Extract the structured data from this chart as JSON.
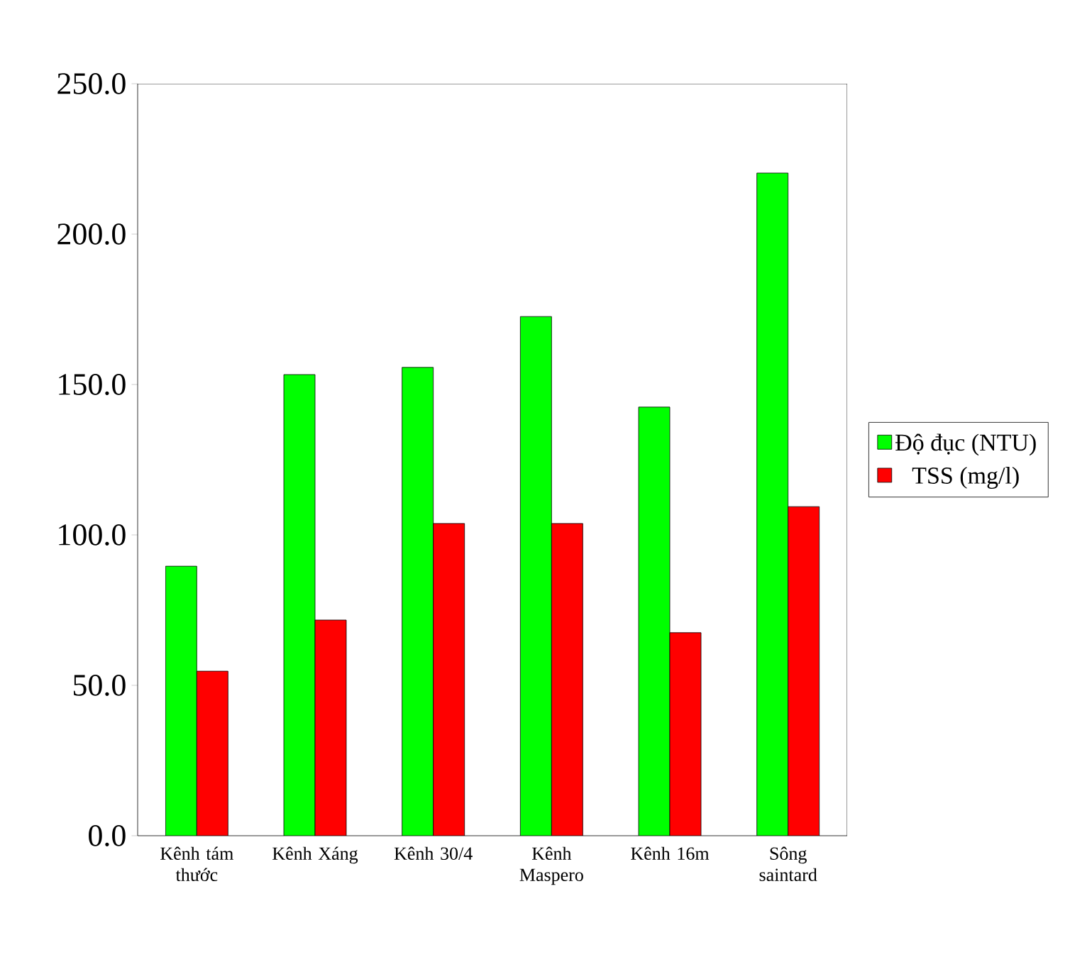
{
  "chart_data": {
    "type": "bar",
    "categories": [
      "Kênh tám thước",
      "Kênh Xáng",
      "Kênh 30/4",
      "Kênh Maspero",
      "Kênh 16m",
      "Sông saintard"
    ],
    "series": [
      {
        "name": "Độ đục (NTU)",
        "color": "#00ff00",
        "values": [
          89.6,
          153.3,
          155.7,
          172.6,
          142.5,
          220.3
        ]
      },
      {
        "name": "TSS (mg/l)",
        "color": "#ff0000",
        "values": [
          54.7,
          71.7,
          103.8,
          103.8,
          67.5,
          109.4
        ]
      }
    ],
    "ylim": [
      0,
      250
    ],
    "yticks": [
      {
        "value": 0,
        "label": "0.0"
      },
      {
        "value": 50,
        "label": "50.0"
      },
      {
        "value": 100,
        "label": "100.0"
      },
      {
        "value": 150,
        "label": "150.0"
      },
      {
        "value": 200,
        "label": "200.0"
      },
      {
        "value": 250,
        "label": "250.0"
      }
    ],
    "legend": "right"
  }
}
